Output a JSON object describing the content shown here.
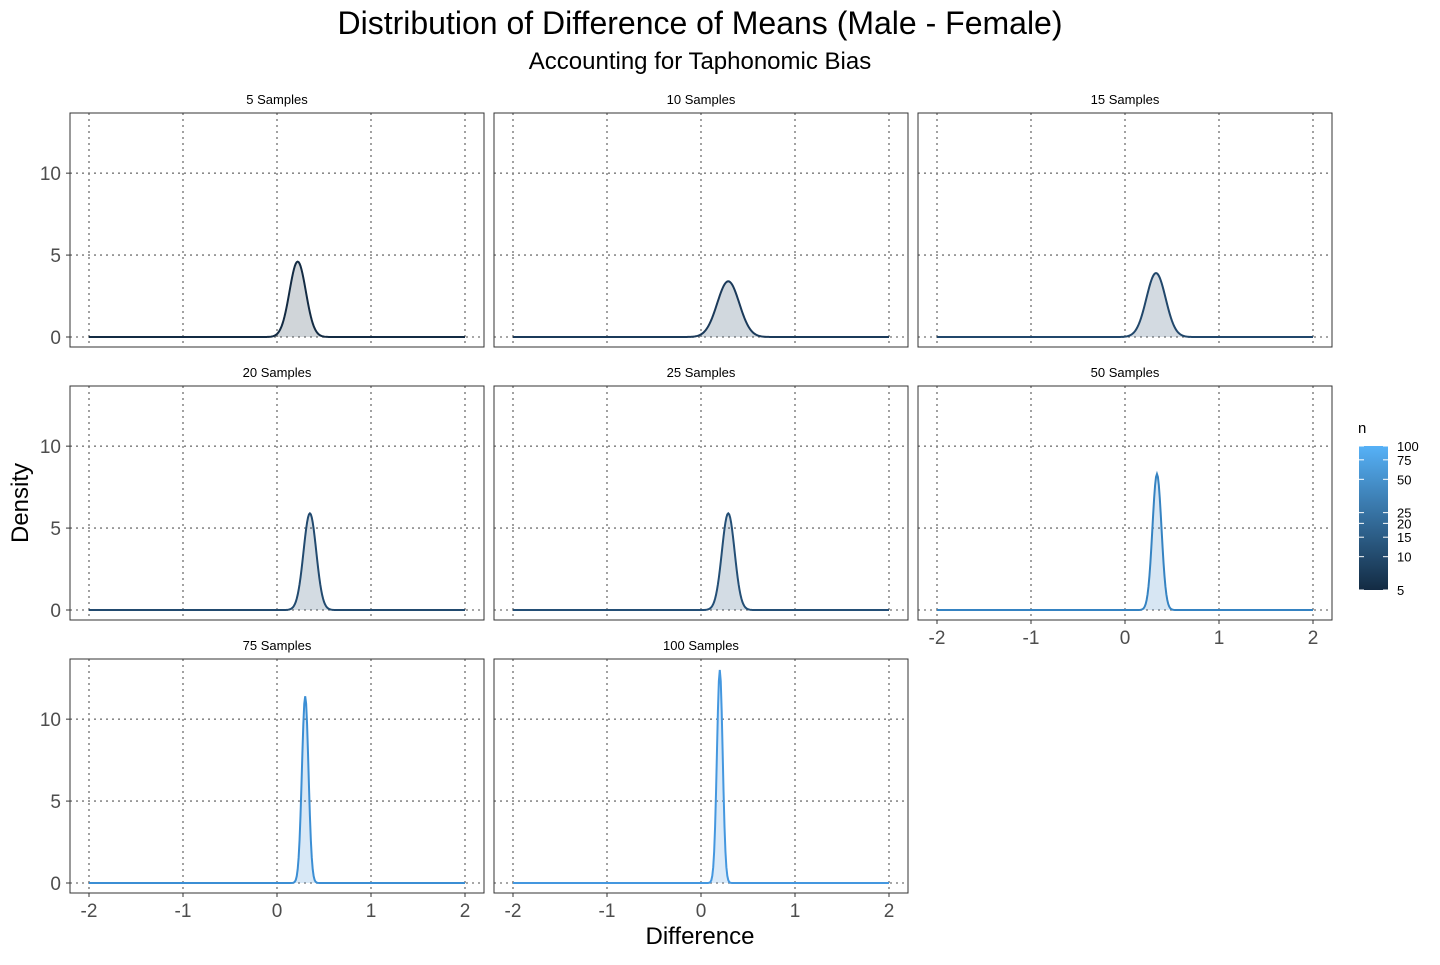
{
  "chart_data": {
    "type": "area",
    "title": "Distribution of Difference of Means (Male - Female)",
    "subtitle": "Accounting for Taphonomic Bias",
    "xlabel": "Difference",
    "ylabel": "Density",
    "xlim": [
      -2,
      2
    ],
    "ylim": [
      0,
      13
    ],
    "x_ticks": [
      -2,
      -1,
      0,
      1,
      2
    ],
    "y_ticks": [
      0,
      5,
      10
    ],
    "x_tick_labels": [
      "-2",
      "-1",
      "0",
      "1",
      "2"
    ],
    "y_tick_labels": [
      "0",
      "5",
      "10"
    ],
    "grid": "dotted",
    "legend": {
      "title": "n",
      "position": "right",
      "tick_values": [
        5,
        10,
        15,
        20,
        25,
        50,
        75,
        100
      ],
      "tick_labels": [
        "5",
        "10",
        "15",
        "20",
        "25",
        "50",
        "75",
        "100"
      ],
      "color_low": "#132B43",
      "color_high": "#56B1F7"
    },
    "panels": [
      {
        "label": "5  Samples",
        "n": 5,
        "color": "#132B43",
        "peak_x": 0.22,
        "peak_density": 4.6
      },
      {
        "label": "10  Samples",
        "n": 10,
        "color": "#1B3A5A",
        "peak_x": 0.29,
        "peak_density": 3.4
      },
      {
        "label": "15  Samples",
        "n": 15,
        "color": "#21476B",
        "peak_x": 0.33,
        "peak_density": 3.9
      },
      {
        "label": "20  Samples",
        "n": 20,
        "color": "#224A6F",
        "peak_x": 0.35,
        "peak_density": 5.9
      },
      {
        "label": "25  Samples",
        "n": 25,
        "color": "#244F76",
        "peak_x": 0.29,
        "peak_density": 5.9
      },
      {
        "label": "50  Samples",
        "n": 50,
        "color": "#3583C2",
        "peak_x": 0.34,
        "peak_density": 8.3
      },
      {
        "label": "75  Samples",
        "n": 75,
        "color": "#3B8ED4",
        "peak_x": 0.3,
        "peak_density": 11.4
      },
      {
        "label": "100  Samples",
        "n": 100,
        "color": "#4497DF",
        "peak_x": 0.2,
        "peak_density": 13.0
      }
    ]
  }
}
